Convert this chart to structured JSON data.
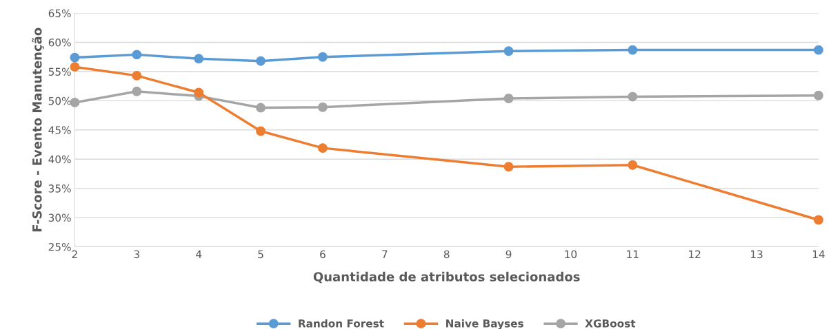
{
  "chart_data": {
    "type": "line",
    "xlabel": "Quantidade de atributos selecionados",
    "ylabel": "F-Score - Evento Manutenção",
    "x": [
      2,
      3,
      4,
      5,
      6,
      9,
      11,
      14
    ],
    "series": [
      {
        "name": "Randon Forest",
        "color": "#5b9bd5",
        "values": [
          57.4,
          57.9,
          57.2,
          56.8,
          57.5,
          58.5,
          58.7,
          58.7
        ]
      },
      {
        "name": "Naive Bayses",
        "color": "#ed7d31",
        "values": [
          55.8,
          54.3,
          51.4,
          44.8,
          41.9,
          38.7,
          39.0,
          29.6
        ]
      },
      {
        "name": "XGBoost",
        "color": "#a5a5a5",
        "values": [
          49.7,
          51.6,
          50.8,
          48.8,
          48.9,
          50.4,
          50.7,
          50.9
        ]
      }
    ],
    "xlim": [
      2,
      14
    ],
    "xticks": [
      2,
      3,
      4,
      5,
      6,
      7,
      8,
      9,
      10,
      11,
      12,
      13,
      14
    ],
    "ylim": [
      25,
      65
    ],
    "yticks": [
      {
        "value": 25,
        "label": "25%"
      },
      {
        "value": 30,
        "label": "30%"
      },
      {
        "value": 35,
        "label": "35%"
      },
      {
        "value": 40,
        "label": "40%"
      },
      {
        "value": 45,
        "label": "45%"
      },
      {
        "value": 50,
        "label": "50%"
      },
      {
        "value": 55,
        "label": "55%"
      },
      {
        "value": 60,
        "label": "60%"
      },
      {
        "value": 65,
        "label": "65%"
      }
    ],
    "grid": "y",
    "legend": "bottom",
    "marker": "circle",
    "line_style": "solid"
  }
}
